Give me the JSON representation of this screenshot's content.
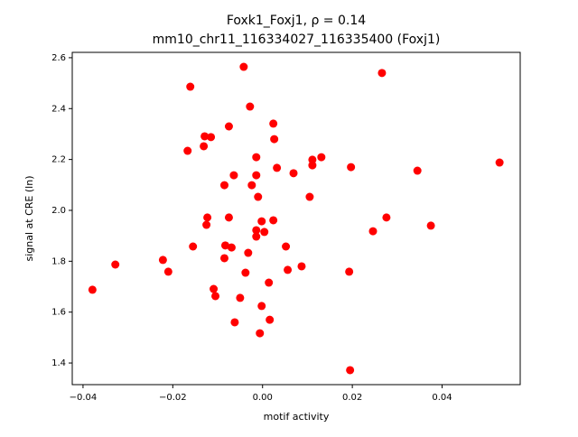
{
  "chart_data": {
    "type": "scatter",
    "title": [
      "Foxk1_Foxj1, ρ = 0.14",
      "mm10_chr11_116334027_116335400 (Foxj1)"
    ],
    "x_label": "motif activity",
    "y_label": "signal at CRE (ln)",
    "color": "#ff0000",
    "x": [
      -0.0379,
      -0.0328,
      -0.0222,
      -0.021,
      -0.0161,
      -0.0167,
      -0.0155,
      -0.0129,
      -0.0131,
      -0.0115,
      -0.0123,
      -0.0125,
      -0.0109,
      -0.0105,
      -0.0085,
      -0.0083,
      -0.0085,
      -0.0075,
      -0.0075,
      -0.0064,
      -0.0069,
      -0.0062,
      -0.0042,
      -0.005,
      -0.0038,
      -0.0032,
      -0.0028,
      -0.0024,
      -0.0014,
      -0.0014,
      -0.001,
      -0.0014,
      -0.0014,
      -0.0002,
      0.0004,
      -0.0002,
      -0.0006,
      0.0014,
      0.0016,
      0.0024,
      0.0026,
      0.0024,
      0.0032,
      0.0052,
      0.0056,
      0.0069,
      0.0087,
      0.0105,
      0.0111,
      0.0111,
      0.0131,
      0.0193,
      0.0195,
      0.0197,
      0.0246,
      0.0266,
      0.0276,
      0.0345,
      0.0375,
      0.0528
    ],
    "values": [
      1.688,
      1.787,
      1.805,
      1.759,
      2.486,
      2.234,
      1.858,
      2.291,
      2.252,
      2.288,
      1.972,
      1.943,
      1.691,
      1.663,
      2.099,
      1.862,
      1.812,
      2.33,
      1.972,
      2.138,
      1.854,
      1.56,
      2.564,
      1.656,
      1.755,
      1.833,
      2.408,
      2.099,
      2.209,
      2.138,
      2.053,
      1.922,
      1.897,
      1.957,
      1.915,
      1.624,
      1.517,
      1.716,
      1.57,
      2.341,
      2.28,
      1.961,
      2.167,
      1.858,
      1.766,
      2.146,
      1.78,
      2.053,
      2.199,
      2.177,
      2.209,
      1.759,
      1.372,
      2.17,
      1.918,
      2.54,
      1.972,
      2.156,
      1.94,
      2.188
    ],
    "xlim": [
      -0.0424,
      0.0574
    ],
    "ylim": [
      1.315,
      2.621
    ],
    "xticks": [
      {
        "value": -0.04,
        "label": "−0.04"
      },
      {
        "value": -0.02,
        "label": "−0.02"
      },
      {
        "value": 0,
        "label": "0.00"
      },
      0.02,
      0.04
    ],
    "yticks": [
      1.4,
      1.6,
      1.8,
      {
        "value": 2,
        "label": "2.0"
      },
      2.2,
      2.4,
      2.6
    ]
  }
}
